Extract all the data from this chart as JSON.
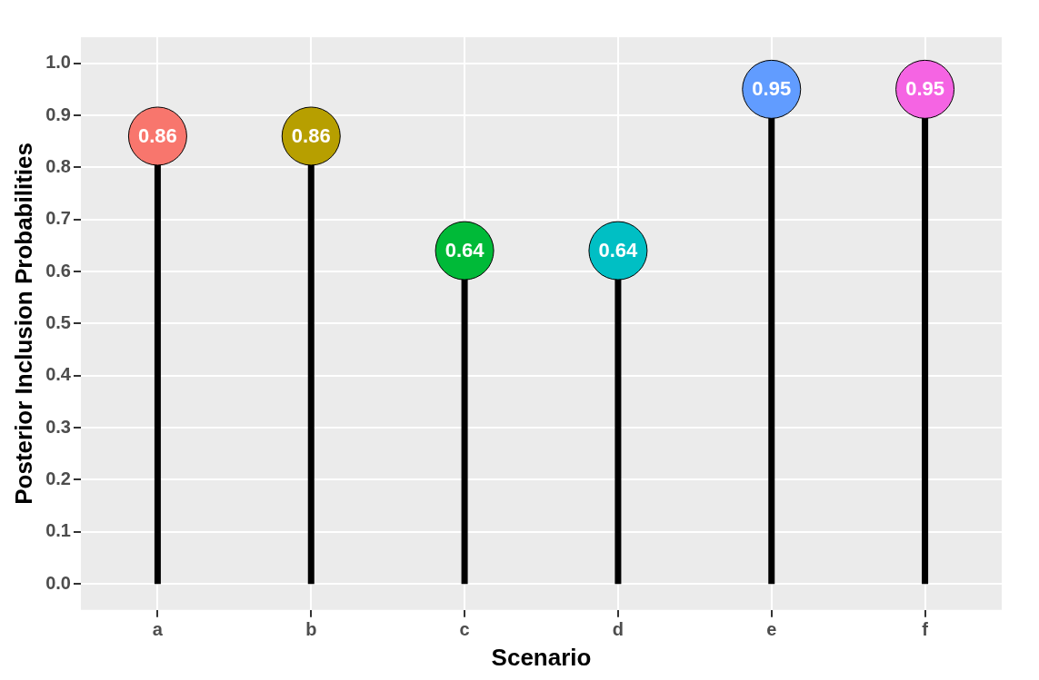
{
  "chart_data": {
    "type": "lollipop",
    "xlabel": "Scenario",
    "ylabel": "Posterior Inclusion Probabilities",
    "categories": [
      "a",
      "b",
      "c",
      "d",
      "e",
      "f"
    ],
    "values": [
      0.86,
      0.86,
      0.64,
      0.64,
      0.95,
      0.95
    ],
    "color": "#000000",
    "colors": [
      "#f8766d",
      "#b79f00",
      "#00ba38",
      "#00bfc4",
      "#619cff",
      "#f564e3"
    ],
    "ylim": [
      -0.05,
      1.05
    ],
    "yticks": [
      {
        "value": 0,
        "label": "0.0"
      },
      0.1,
      0.2,
      0.3,
      0.4,
      0.5,
      0.6,
      0.7,
      0.8,
      0.9,
      {
        "value": 1,
        "label": "1.0"
      }
    ],
    "grid": true,
    "legend": false,
    "marker": "circle",
    "data_labels": true
  }
}
